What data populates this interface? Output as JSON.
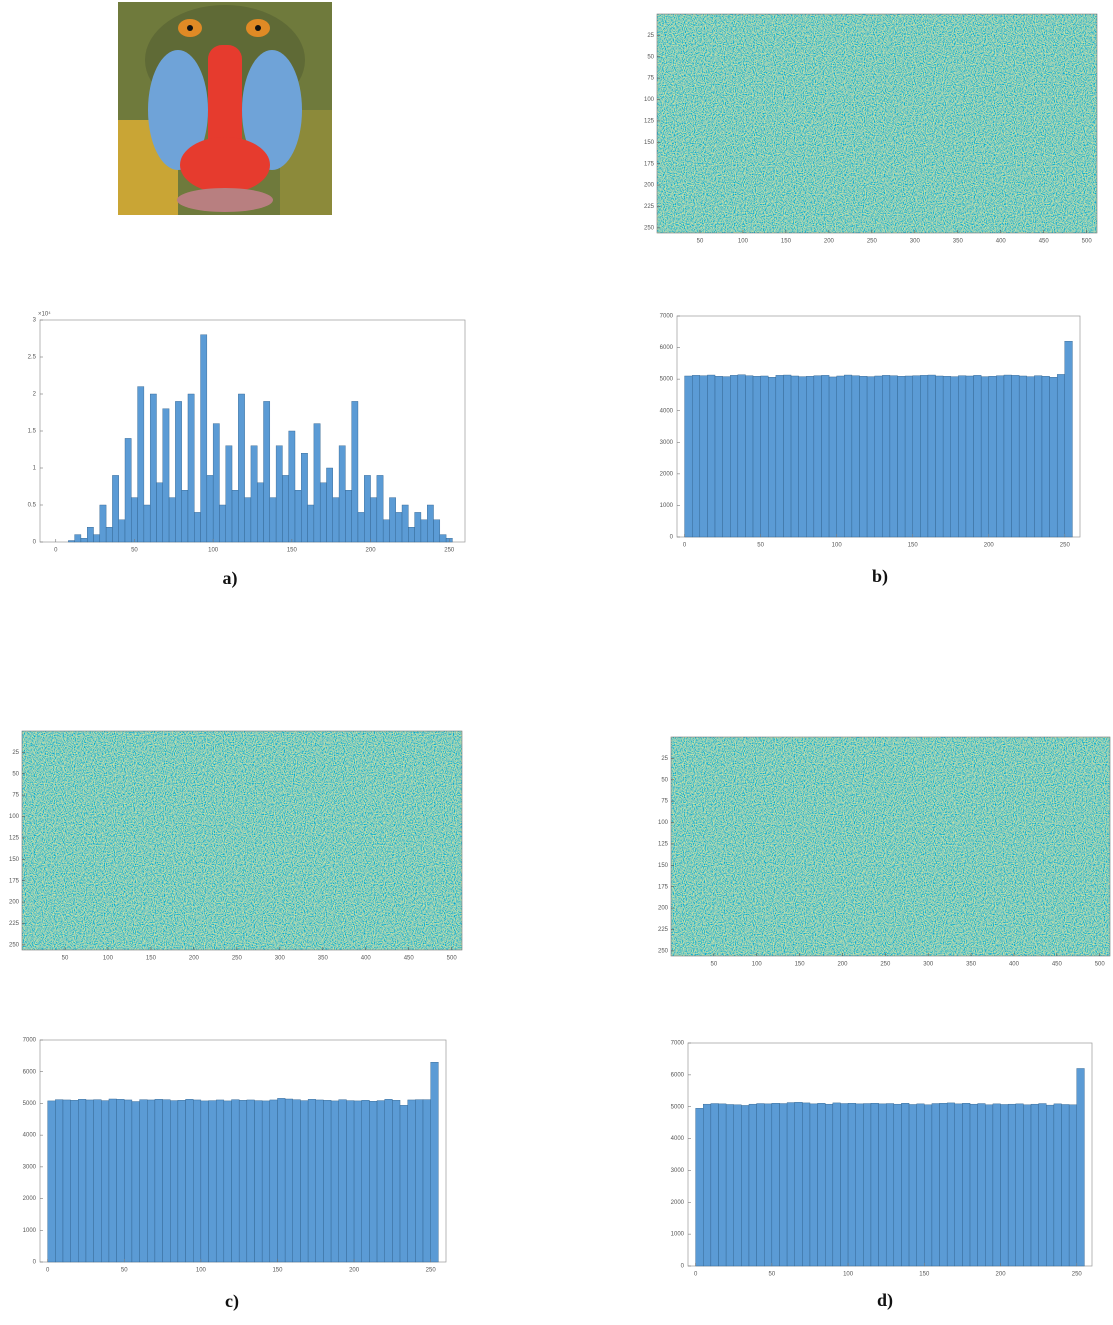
{
  "panels": [
    "a)",
    "b)",
    "c)",
    "d)"
  ],
  "image_axes": [
    {
      "xlim": [
        0,
        512
      ],
      "xticks": [
        50,
        100,
        150,
        200,
        250,
        300,
        350,
        400,
        450,
        500
      ],
      "ylim": [
        0,
        256
      ],
      "yticks": [
        25,
        50,
        75,
        100,
        125,
        150,
        175,
        200,
        225,
        250
      ]
    },
    {
      "xlim": [
        0,
        512
      ],
      "xticks": [
        50,
        100,
        150,
        200,
        250,
        300,
        350,
        400,
        450,
        500
      ],
      "ylim": [
        0,
        256
      ],
      "yticks": [
        25,
        50,
        75,
        100,
        125,
        150,
        175,
        200,
        225,
        250
      ]
    },
    {
      "xlim": [
        0,
        512
      ],
      "xticks": [
        50,
        100,
        150,
        200,
        250,
        300,
        350,
        400,
        450,
        500
      ],
      "ylim": [
        0,
        256
      ],
      "yticks": [
        25,
        50,
        75,
        100,
        125,
        150,
        175,
        200,
        225,
        250
      ]
    }
  ],
  "chart_data": [
    {
      "type": "histogram",
      "color": "#5b9bd5",
      "y_exponent": "×10⁴",
      "bins": [
        0,
        4,
        8,
        12,
        16,
        20,
        24,
        28,
        32,
        36,
        40,
        44,
        48,
        52,
        56,
        60,
        64,
        68,
        72,
        76,
        80,
        84,
        88,
        92,
        96,
        100,
        104,
        108,
        112,
        116,
        120,
        124,
        128,
        132,
        136,
        140,
        144,
        148,
        152,
        156,
        160,
        164,
        168,
        172,
        176,
        180,
        184,
        188,
        192,
        196,
        200,
        204,
        208,
        212,
        216,
        220,
        224,
        228,
        232,
        236,
        240,
        244,
        248,
        252,
        256
      ],
      "values": [
        0,
        0,
        0.02,
        0.1,
        0.05,
        0.2,
        0.1,
        0.5,
        0.2,
        0.9,
        0.3,
        1.4,
        0.6,
        2.1,
        0.5,
        2.0,
        0.8,
        1.8,
        0.6,
        1.9,
        0.7,
        2.0,
        0.4,
        2.8,
        0.9,
        1.6,
        0.5,
        1.3,
        0.7,
        2.0,
        0.6,
        1.3,
        0.8,
        1.9,
        0.6,
        1.3,
        0.9,
        1.5,
        0.7,
        1.2,
        0.5,
        1.6,
        0.8,
        1.0,
        0.6,
        1.3,
        0.7,
        1.9,
        0.4,
        0.9,
        0.6,
        0.9,
        0.3,
        0.6,
        0.4,
        0.5,
        0.2,
        0.4,
        0.3,
        0.5,
        0.3,
        0.1,
        0.05,
        0
      ],
      "xlim": [
        -10,
        260
      ],
      "xticks": [
        0,
        50,
        100,
        150,
        200,
        250
      ],
      "ylim": [
        0,
        3
      ],
      "yticks": [
        0,
        0.5,
        1,
        1.5,
        2,
        2.5,
        3
      ]
    },
    {
      "type": "histogram",
      "color": "#5b9bd5",
      "bins": [
        0,
        5,
        10,
        15,
        20,
        25,
        30,
        35,
        40,
        45,
        50,
        55,
        60,
        65,
        70,
        75,
        80,
        85,
        90,
        95,
        100,
        105,
        110,
        115,
        120,
        125,
        130,
        135,
        140,
        145,
        150,
        155,
        160,
        165,
        170,
        175,
        180,
        185,
        190,
        195,
        200,
        205,
        210,
        215,
        220,
        225,
        230,
        235,
        240,
        245,
        250,
        255
      ],
      "values": [
        5100,
        5120,
        5110,
        5130,
        5090,
        5080,
        5120,
        5140,
        5110,
        5090,
        5100,
        5060,
        5120,
        5130,
        5100,
        5080,
        5090,
        5110,
        5120,
        5070,
        5100,
        5130,
        5110,
        5090,
        5080,
        5100,
        5120,
        5110,
        5090,
        5100,
        5110,
        5120,
        5130,
        5100,
        5090,
        5080,
        5110,
        5100,
        5120,
        5080,
        5090,
        5110,
        5130,
        5120,
        5100,
        5080,
        5110,
        5090,
        5060,
        5150,
        6200
      ],
      "xlim": [
        -5,
        260
      ],
      "xticks": [
        0,
        50,
        100,
        150,
        200,
        250
      ],
      "ylim": [
        0,
        7000
      ],
      "yticks": [
        0,
        1000,
        2000,
        3000,
        4000,
        5000,
        6000,
        7000
      ]
    },
    {
      "type": "histogram",
      "color": "#5b9bd5",
      "bins": [
        0,
        5,
        10,
        15,
        20,
        25,
        30,
        35,
        40,
        45,
        50,
        55,
        60,
        65,
        70,
        75,
        80,
        85,
        90,
        95,
        100,
        105,
        110,
        115,
        120,
        125,
        130,
        135,
        140,
        145,
        150,
        155,
        160,
        165,
        170,
        175,
        180,
        185,
        190,
        195,
        200,
        205,
        210,
        215,
        220,
        225,
        230,
        235,
        240,
        245,
        250,
        255
      ],
      "values": [
        5080,
        5120,
        5110,
        5100,
        5130,
        5110,
        5120,
        5090,
        5140,
        5130,
        5110,
        5060,
        5120,
        5110,
        5130,
        5120,
        5090,
        5100,
        5130,
        5110,
        5080,
        5090,
        5110,
        5080,
        5120,
        5100,
        5110,
        5090,
        5080,
        5110,
        5160,
        5140,
        5120,
        5090,
        5130,
        5110,
        5100,
        5080,
        5120,
        5090,
        5080,
        5100,
        5070,
        5090,
        5130,
        5100,
        4940,
        5110,
        5120,
        5120,
        6300
      ],
      "xlim": [
        -5,
        260
      ],
      "xticks": [
        0,
        50,
        100,
        150,
        200,
        250
      ],
      "ylim": [
        0,
        7000
      ],
      "yticks": [
        0,
        1000,
        2000,
        3000,
        4000,
        5000,
        6000,
        7000
      ]
    },
    {
      "type": "histogram",
      "color": "#5b9bd5",
      "bins": [
        0,
        5,
        10,
        15,
        20,
        25,
        30,
        35,
        40,
        45,
        50,
        55,
        60,
        65,
        70,
        75,
        80,
        85,
        90,
        95,
        100,
        105,
        110,
        115,
        120,
        125,
        130,
        135,
        140,
        145,
        150,
        155,
        160,
        165,
        170,
        175,
        180,
        185,
        190,
        195,
        200,
        205,
        210,
        215,
        220,
        225,
        230,
        235,
        240,
        245,
        250,
        255
      ],
      "values": [
        4950,
        5080,
        5100,
        5090,
        5070,
        5060,
        5040,
        5080,
        5100,
        5090,
        5110,
        5100,
        5130,
        5140,
        5120,
        5090,
        5110,
        5080,
        5120,
        5100,
        5110,
        5090,
        5100,
        5110,
        5090,
        5100,
        5080,
        5110,
        5070,
        5090,
        5060,
        5100,
        5110,
        5120,
        5090,
        5110,
        5080,
        5100,
        5060,
        5090,
        5070,
        5080,
        5090,
        5060,
        5080,
        5100,
        5050,
        5090,
        5070,
        5060,
        6200
      ],
      "xlim": [
        -5,
        260
      ],
      "xticks": [
        0,
        50,
        100,
        150,
        200,
        250
      ],
      "ylim": [
        0,
        7000
      ],
      "yticks": [
        0,
        1000,
        2000,
        3000,
        4000,
        5000,
        6000,
        7000
      ]
    }
  ]
}
